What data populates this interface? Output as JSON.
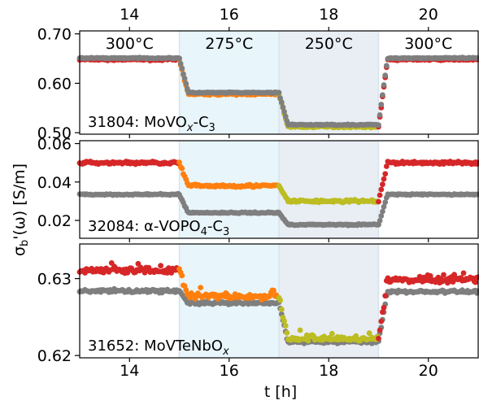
{
  "chart_data": {
    "type": "scatter",
    "xlabel": "t [h]",
    "ylabel": "σb'(ω) [S/m]",
    "xlim": [
      13,
      21
    ],
    "x_ticks": [
      "14",
      "16",
      "18",
      "20"
    ],
    "regions": [
      {
        "label": "300°C",
        "start": 13,
        "end": 15,
        "color": "#ffffff"
      },
      {
        "label": "275°C",
        "start": 15,
        "end": 17,
        "color": "#e8f5fa"
      },
      {
        "label": "250°C",
        "start": 17,
        "end": 19,
        "color": "#e9edf4"
      },
      {
        "label": "300°C",
        "start": 19,
        "end": 21,
        "color": "#ffffff"
      }
    ],
    "segment_colors": [
      "#d62728",
      "#ff7f0e",
      "#bcbd22",
      "#d62728"
    ],
    "reference_color": "#7f7f7f",
    "panels": [
      {
        "label_main": "31804: MoVO",
        "label_sub": "x",
        "label_mid": "-C",
        "label_sub2": "3",
        "ylim": [
          0.497,
          0.706
        ],
        "y_ticks": [
          "0.50",
          "0.60",
          "0.70"
        ],
        "y_tick_values": [
          0.5,
          0.6,
          0.7
        ],
        "series": [
          {
            "name": "colored",
            "levels": [
              0.648,
              0.578,
              0.512,
              0.648
            ],
            "noise": 0.0015
          },
          {
            "name": "gray",
            "levels": [
              0.651,
              0.581,
              0.516,
              0.651
            ],
            "noise": 0.001
          }
        ]
      },
      {
        "label_main": "32084: α-VOPO",
        "label_sub": "4",
        "label_mid": "-C",
        "label_sub2": "3",
        "ylim": [
          0.0107,
          0.0615
        ],
        "y_ticks": [
          "0.02",
          "0.04",
          "0.06"
        ],
        "y_tick_values": [
          0.02,
          0.04,
          0.06
        ],
        "series": [
          {
            "name": "colored",
            "levels": [
              0.05,
              0.038,
              0.03,
              0.05
            ],
            "noise": 0.0007
          },
          {
            "name": "gray",
            "levels": [
              0.0335,
              0.024,
              0.0178,
              0.0335
            ],
            "noise": 0.0003
          }
        ]
      },
      {
        "label_main": "31652: MoVTeNbO",
        "label_sub": "x",
        "label_mid": "",
        "label_sub2": "",
        "ylim": [
          0.6197,
          0.6345
        ],
        "y_ticks": [
          "0.62",
          "0.63"
        ],
        "y_tick_values": [
          0.62,
          0.63
        ],
        "series": [
          {
            "name": "colored",
            "levels": [
              0.6311,
              0.6277,
              0.6222,
              0.6298
            ],
            "noise": 0.0004
          },
          {
            "name": "gray",
            "levels": [
              0.6284,
              0.6268,
              0.6218,
              0.6283
            ],
            "noise": 0.0002
          }
        ]
      }
    ]
  }
}
